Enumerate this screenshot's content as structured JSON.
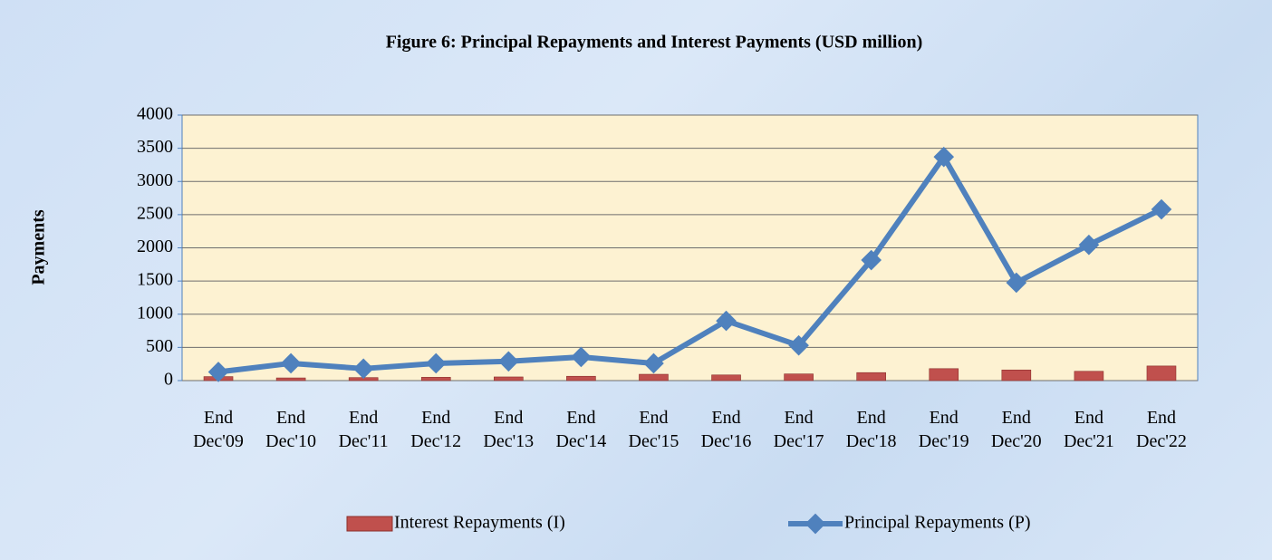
{
  "chart_data": {
    "type": "bar_line",
    "title": "Figure 6: Principal Repayments and Interest Payments (USD million)",
    "y_label": "Payments",
    "categories": [
      "End Dec'09",
      "End Dec'10",
      "End Dec'11",
      "End Dec'12",
      "End Dec'13",
      "End Dec'14",
      "End Dec'15",
      "End Dec'16",
      "End Dec'17",
      "End Dec'18",
      "End Dec'19",
      "End Dec'20",
      "End Dec'21",
      "End Dec'22"
    ],
    "series": [
      {
        "name": "Interest Repayments (I)",
        "kind": "bar",
        "color": "#c0504d",
        "values": [
          60,
          40,
          45,
          50,
          55,
          65,
          95,
          85,
          100,
          120,
          180,
          160,
          140,
          220
        ]
      },
      {
        "name": "Principal Repayments (P)",
        "kind": "line",
        "color": "#4f81bd",
        "values": [
          130,
          260,
          180,
          260,
          290,
          355,
          260,
          900,
          530,
          1815,
          3370,
          1475,
          2045,
          2580
        ]
      }
    ],
    "ylim": [
      0,
      4000
    ],
    "yticks": [
      0,
      500,
      1000,
      1500,
      2000,
      2500,
      3000,
      3500,
      4000
    ],
    "grid": true,
    "legend": "bottom"
  }
}
